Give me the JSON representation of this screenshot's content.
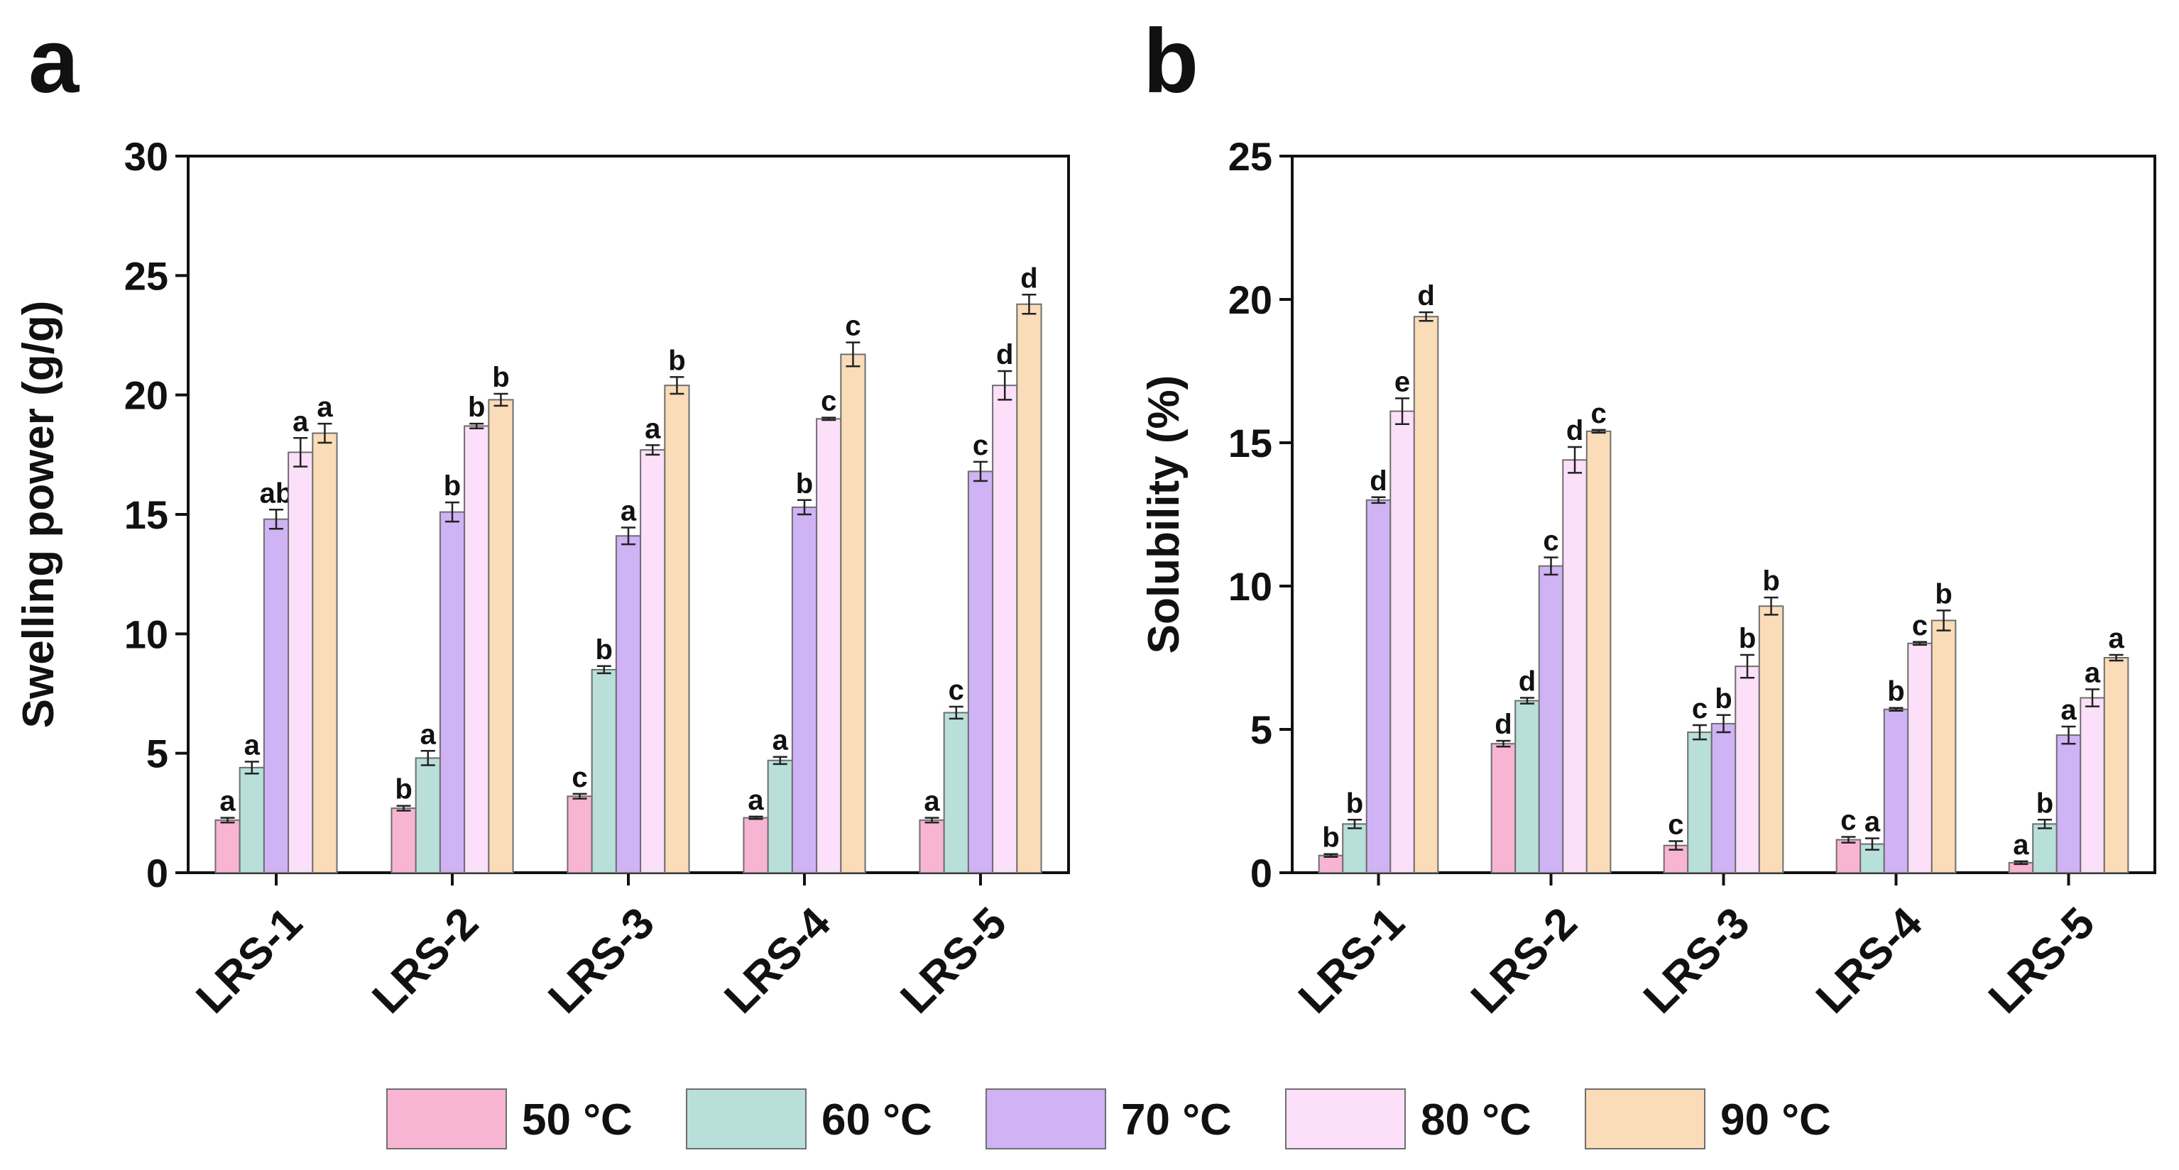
{
  "legend": {
    "items": [
      {
        "label": "50 °C",
        "color": "#f7b5d3"
      },
      {
        "label": "60 °C",
        "color": "#b9dfdb"
      },
      {
        "label": "70 °C",
        "color": "#cfb3f4"
      },
      {
        "label": "80 °C",
        "color": "#fce0fa"
      },
      {
        "label": "90 °C",
        "color": "#fbdcb8"
      }
    ]
  },
  "chart_data": [
    {
      "type": "bar",
      "panel_label": "a",
      "title": "",
      "xlabel": "",
      "ylabel": "Swelling power (g/g)",
      "ylim": [
        0,
        30
      ],
      "yticks": [
        0,
        5,
        10,
        15,
        20,
        25,
        30
      ],
      "grid": false,
      "categories": [
        "LRS-1",
        "LRS-2",
        "LRS-3",
        "LRS-4",
        "LRS-5"
      ],
      "series": [
        {
          "name": "50 °C",
          "values": [
            2.2,
            2.7,
            3.2,
            2.3,
            2.2
          ],
          "errors": [
            0.1,
            0.1,
            0.1,
            0.05,
            0.1
          ],
          "letters": [
            "a",
            "b",
            "c",
            "a",
            "a"
          ]
        },
        {
          "name": "60 °C",
          "values": [
            4.4,
            4.8,
            8.5,
            4.7,
            6.7
          ],
          "errors": [
            0.25,
            0.3,
            0.15,
            0.15,
            0.25
          ],
          "letters": [
            "a",
            "a",
            "b",
            "a",
            "c"
          ]
        },
        {
          "name": "70 °C",
          "values": [
            14.8,
            15.1,
            14.1,
            15.3,
            16.8
          ],
          "errors": [
            0.4,
            0.4,
            0.35,
            0.3,
            0.4
          ],
          "letters": [
            "ab",
            "b",
            "a",
            "b",
            "c"
          ]
        },
        {
          "name": "80 °C",
          "values": [
            17.6,
            18.7,
            17.7,
            19.0,
            20.4
          ],
          "errors": [
            0.6,
            0.1,
            0.2,
            0.05,
            0.6
          ],
          "letters": [
            "a",
            "b",
            "a",
            "c",
            "d"
          ]
        },
        {
          "name": "90 °C",
          "values": [
            18.4,
            19.8,
            20.4,
            21.7,
            23.8
          ],
          "errors": [
            0.4,
            0.25,
            0.35,
            0.5,
            0.4
          ],
          "letters": [
            "a",
            "b",
            "b",
            "c",
            "d"
          ]
        }
      ]
    },
    {
      "type": "bar",
      "panel_label": "b",
      "title": "",
      "xlabel": "",
      "ylabel": "Solubility (%)",
      "ylim": [
        0,
        25
      ],
      "yticks": [
        0,
        5,
        10,
        15,
        20,
        25
      ],
      "grid": false,
      "categories": [
        "LRS-1",
        "LRS-2",
        "LRS-3",
        "LRS-4",
        "LRS-5"
      ],
      "series": [
        {
          "name": "50 °C",
          "values": [
            0.6,
            4.5,
            0.95,
            1.15,
            0.35
          ],
          "errors": [
            0.05,
            0.1,
            0.15,
            0.1,
            0.05
          ],
          "letters": [
            "b",
            "d",
            "c",
            "c",
            "a"
          ]
        },
        {
          "name": "60 °C",
          "values": [
            1.7,
            6.0,
            4.9,
            1.0,
            1.7
          ],
          "errors": [
            0.15,
            0.1,
            0.25,
            0.2,
            0.15
          ],
          "letters": [
            "b",
            "d",
            "c",
            "a",
            "b"
          ]
        },
        {
          "name": "70 °C",
          "values": [
            13.0,
            10.7,
            5.2,
            5.7,
            4.8
          ],
          "errors": [
            0.1,
            0.3,
            0.3,
            0.05,
            0.3
          ],
          "letters": [
            "d",
            "c",
            "b",
            "b",
            "a"
          ]
        },
        {
          "name": "80 °C",
          "values": [
            16.1,
            14.4,
            7.2,
            8.0,
            6.1
          ],
          "errors": [
            0.45,
            0.45,
            0.4,
            0.05,
            0.3
          ],
          "letters": [
            "e",
            "d",
            "b",
            "c",
            "a"
          ]
        },
        {
          "name": "90 °C",
          "values": [
            19.4,
            15.4,
            9.3,
            8.8,
            7.5
          ],
          "errors": [
            0.15,
            0.05,
            0.3,
            0.35,
            0.1
          ],
          "letters": [
            "d",
            "c",
            "b",
            "b",
            "a"
          ]
        }
      ]
    }
  ]
}
